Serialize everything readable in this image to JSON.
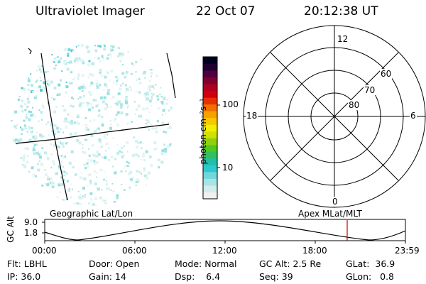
{
  "header": {
    "instrument": "Ultraviolet Imager",
    "date": "22 Oct 07",
    "time": "20:12:38 UT"
  },
  "colorbar": {
    "unit_label": "photon cm⁻²s⁻¹",
    "ticks": [
      {
        "label": "100",
        "value": 100
      },
      {
        "label": "10",
        "value": 10
      }
    ],
    "colors": [
      "#f0f0f0",
      "#d0ecec",
      "#a8e4e4",
      "#70d8dc",
      "#30c8d0",
      "#20c0a8",
      "#30c060",
      "#50c820",
      "#90d010",
      "#d0e000",
      "#f0f000",
      "#f8c800",
      "#f8a000",
      "#f07000",
      "#e83000",
      "#d00010",
      "#b00020",
      "#800030",
      "#500040",
      "#200030",
      "#000020"
    ],
    "color_notes": "bottom to top"
  },
  "polar_plot": {
    "mlt_labels": {
      "top": "12",
      "bottom": "0",
      "left": "18",
      "right": "6"
    },
    "lat_labels": [
      "60",
      "70",
      "80"
    ]
  },
  "timeline": {
    "y_axis_label": "GC Alt",
    "y_ticks": [
      "9.0",
      "1.8"
    ],
    "left_caption": "Geographic Lat/Lon",
    "right_caption": "Apex MLat/MLT",
    "x_ticks": [
      "00:00",
      "06:00",
      "12:00",
      "18:00",
      "23:59"
    ],
    "marker_color": "#cc0000"
  },
  "footer": {
    "row1": {
      "flt": "Flt: LBHL",
      "door": "Door: Open",
      "mode": "Mode: Normal",
      "gcalt": "GC Alt: 2.5 Re",
      "glat": "GLat:  36.9"
    },
    "row2": {
      "ip": "IP: 36.0",
      "gain": "Gain: 14",
      "dsp": "Dsp:    6.4",
      "seq": "Seq: 39",
      "glon": "GLon:   0.8"
    }
  }
}
